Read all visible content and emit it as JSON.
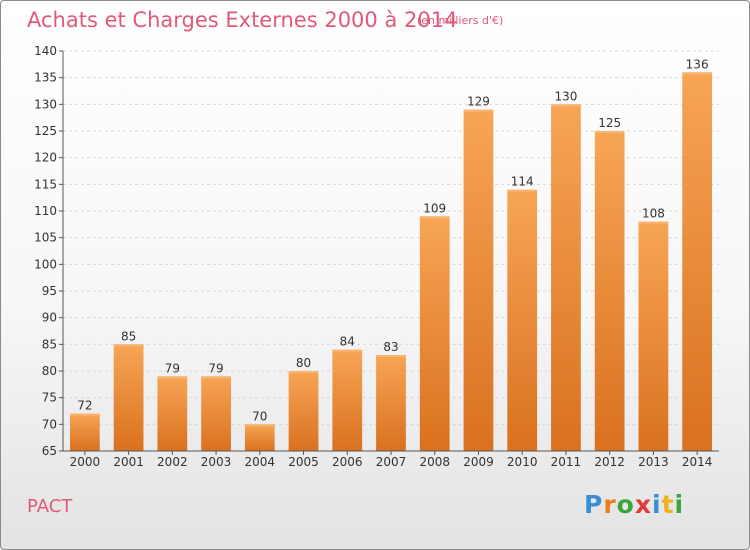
{
  "chart_data": {
    "type": "bar",
    "title": "Achats et Charges Externes 2000 à 2014",
    "subtitle": "(en milliers d'€)",
    "categories": [
      "2000",
      "2001",
      "2002",
      "2003",
      "2004",
      "2005",
      "2006",
      "2007",
      "2008",
      "2009",
      "2010",
      "2011",
      "2012",
      "2013",
      "2014"
    ],
    "values": [
      72,
      85,
      79,
      79,
      70,
      80,
      84,
      83,
      109,
      129,
      114,
      130,
      125,
      108,
      136
    ],
    "ylim": [
      65,
      140
    ],
    "yticks": [
      65,
      70,
      75,
      80,
      85,
      90,
      95,
      100,
      105,
      110,
      115,
      120,
      125,
      130,
      135,
      140
    ],
    "grid": true,
    "bar_color": "#f0953a",
    "xlabel": "",
    "ylabel": ""
  },
  "footer": {
    "town": "PACT",
    "logo_letters": [
      "P",
      "r",
      "o",
      "x",
      "i",
      "t",
      "i"
    ],
    "logo_colors": [
      "#3b8fd1",
      "#f07b1a",
      "#3aa53a",
      "#e03a3a",
      "#3b8fd1",
      "#f0b21a",
      "#3aa53a"
    ]
  },
  "colors": {
    "accent": "#e05a78"
  }
}
